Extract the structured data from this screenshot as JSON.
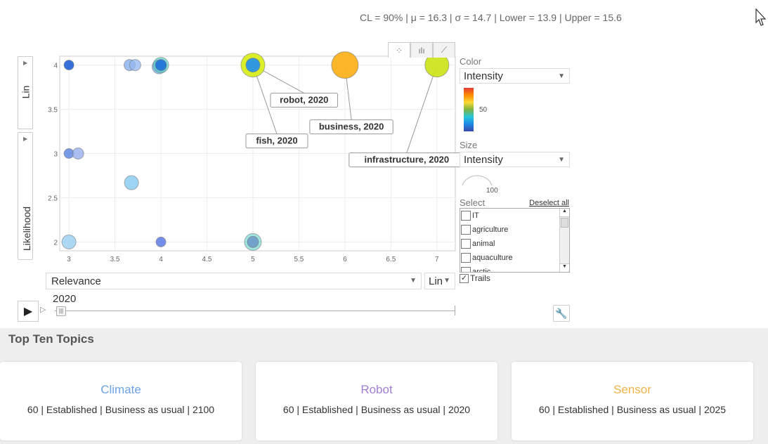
{
  "stats_line": "CL = 90% | μ = 16.3 | σ = 14.7 | Lower = 13.9 | Upper = 15.6",
  "chart_data": {
    "type": "scatter",
    "xlabel": "Relevance",
    "ylabel": "Likelihood",
    "xlim": [
      2.9,
      7.2
    ],
    "ylim": [
      1.9,
      4.1
    ],
    "x_ticks": [
      "3",
      "3.5",
      "4",
      "4.5",
      "5",
      "5.5",
      "6",
      "6.5",
      "7"
    ],
    "y_ticks": [
      "2",
      "2.5",
      "3",
      "3.5",
      "4"
    ],
    "grid": true,
    "points": [
      {
        "x": 3,
        "y": 4,
        "r": 7,
        "color": "#1e5fd6",
        "alpha": 0.9
      },
      {
        "x": 3.66,
        "y": 4,
        "r": 8,
        "color": "#7fa8ec",
        "alpha": 0.75
      },
      {
        "x": 3.72,
        "y": 4,
        "r": 8,
        "color": "#93b8f0",
        "alpha": 0.75
      },
      {
        "x": 3.98,
        "y": 3.98,
        "r": 10,
        "color": "#6fb8e8",
        "alpha": 0.75
      },
      {
        "x": 4,
        "y": 4,
        "r": 11,
        "color": "#3fd0c8",
        "alpha": 0.6
      },
      {
        "x": 4,
        "y": 4,
        "r": 8,
        "color": "#1f6bd9",
        "alpha": 0.85
      },
      {
        "x": 5,
        "y": 4,
        "r": 17,
        "color": "#d8ee1d",
        "alpha": 0.95
      },
      {
        "x": 5,
        "y": 4,
        "r": 10,
        "color": "#2a93e8",
        "alpha": 0.95
      },
      {
        "x": 6,
        "y": 4,
        "r": 19,
        "color": "#fdb21e",
        "alpha": 0.95
      },
      {
        "x": 7,
        "y": 4,
        "r": 17,
        "color": "#cde51f",
        "alpha": 0.95
      },
      {
        "x": 3,
        "y": 3,
        "r": 7,
        "color": "#4d79e0",
        "alpha": 0.75
      },
      {
        "x": 3.1,
        "y": 3,
        "r": 8,
        "color": "#8fa9ef",
        "alpha": 0.75
      },
      {
        "x": 3.68,
        "y": 2.67,
        "r": 10,
        "color": "#8ccdf1",
        "alpha": 0.85
      },
      {
        "x": 3,
        "y": 2,
        "r": 10,
        "color": "#9fd1f2",
        "alpha": 0.85
      },
      {
        "x": 4,
        "y": 2,
        "r": 7,
        "color": "#5c7be6",
        "alpha": 0.85
      },
      {
        "x": 5,
        "y": 2,
        "r": 12,
        "color": "#60d6c8",
        "alpha": 0.6
      },
      {
        "x": 5,
        "y": 2,
        "r": 8,
        "color": "#6a95c8",
        "alpha": 0.85
      }
    ],
    "annotations": [
      {
        "text": "robot, 2020",
        "x": 5,
        "y": 4
      },
      {
        "text": "fish, 2020",
        "x": 5,
        "y": 4
      },
      {
        "text": "business, 2020",
        "x": 6,
        "y": 4
      },
      {
        "text": "infrastructure, 2020",
        "x": 7,
        "y": 4
      }
    ]
  },
  "controls": {
    "y_scale": "Lin",
    "x_scale": "Lin",
    "x_select": "Relevance",
    "year": "2020"
  },
  "side": {
    "color_label": "Color",
    "color_value": "Intensity",
    "colorbar_value": "50",
    "size_label": "Size",
    "size_value": "Intensity",
    "size_legend_value": "100",
    "select_label": "Select",
    "deselect_all": "Deselect all",
    "items": [
      "IT",
      "agriculture",
      "animal",
      "aquaculture",
      "arctic"
    ],
    "trails_label": "Trails"
  },
  "topics": {
    "title": "Top Ten Topics",
    "cards": [
      {
        "name": "Climate",
        "info": "60 | Established | Business as usual | 2100",
        "color": "#6fa3e6"
      },
      {
        "name": "Robot",
        "info": "60 | Established | Business as usual | 2020",
        "color": "#a17fd0"
      },
      {
        "name": "Sensor",
        "info": "60 | Established | Business as usual | 2025",
        "color": "#f2b24a"
      }
    ]
  }
}
